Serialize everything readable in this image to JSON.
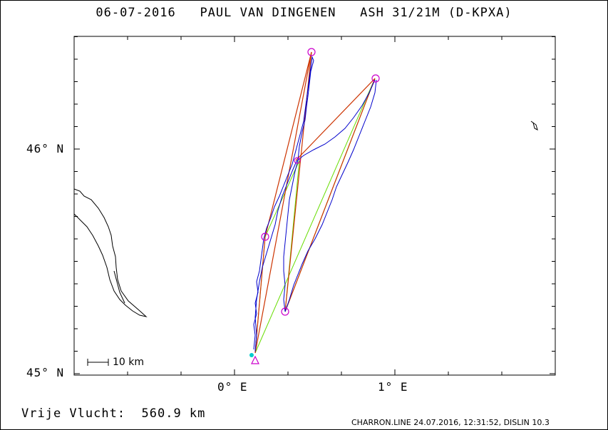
{
  "header": {
    "title": "06-07-2016   PAUL VAN DINGENEN   ASH 31/21M (D-KPXA)"
  },
  "axes": {
    "lat_labels": [
      "46° N",
      "45° N"
    ],
    "lon_labels": [
      "0° E",
      "1° E"
    ]
  },
  "scale_bar": {
    "label": "10 km"
  },
  "footer": {
    "distance": "Vrije Vlucht:  560.9 km",
    "program_info": "CHARRON.LINE 24.07.2016, 12:31:52, DISLIN 10.3"
  },
  "colors": {
    "track": "#0000cc",
    "legs": "#cc3300",
    "alt_route": "#66dd00",
    "turnpoints": "#cc00cc",
    "start": "#00cccc",
    "coastline": "#000000"
  },
  "map_data": {
    "lon_range": [
      -1.0,
      2.0
    ],
    "lat_range": [
      45.0,
      46.4
    ],
    "turnpoints": [
      {
        "name": "start",
        "lon": 0.12,
        "lat": 45.05
      },
      {
        "name": "tp1",
        "lon": 0.19,
        "lat": 45.61
      },
      {
        "name": "tp2",
        "lon": 0.48,
        "lat": 46.44
      },
      {
        "name": "tp3",
        "lon": 0.32,
        "lat": 45.27
      },
      {
        "name": "tp4",
        "lon": 0.88,
        "lat": 46.32
      },
      {
        "name": "tp5",
        "lon": 0.39,
        "lat": 45.95
      }
    ]
  }
}
